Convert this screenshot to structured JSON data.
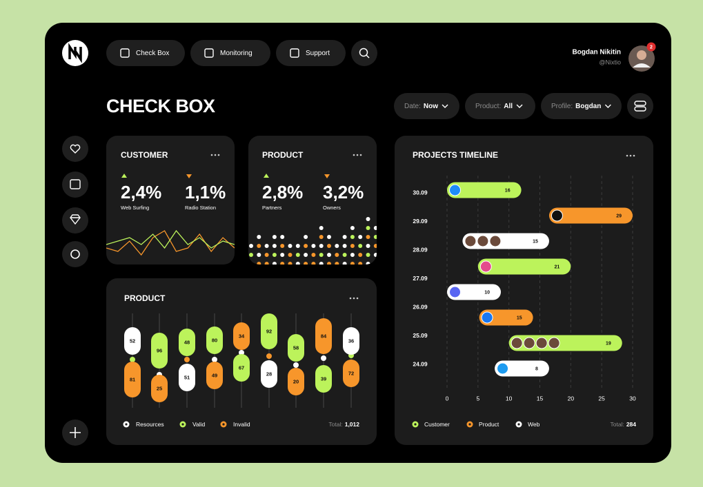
{
  "nav": {
    "items": [
      "Check Box",
      "Monitoring",
      "Support"
    ]
  },
  "user": {
    "name": "Bogdan Nikitin",
    "handle": "@Nixtio",
    "notifications": 2
  },
  "title": "CHECK BOX",
  "filters": [
    {
      "label": "Date:",
      "value": "Now"
    },
    {
      "label": "Product:",
      "value": "All"
    },
    {
      "label": "Profile:",
      "value": "Bogdan"
    }
  ],
  "customer": {
    "title": "CUSTOMER",
    "stats": [
      {
        "value": 2.4,
        "value_label": "2,4%",
        "label": "Web Surfing"
      },
      {
        "value": 1.1,
        "value_label": "1,1%",
        "label": "Radio Station"
      }
    ],
    "ylim": [
      0,
      10
    ],
    "lines": [
      {
        "color": "#f7962b",
        "values": [
          3,
          2,
          5,
          1,
          6,
          8,
          2,
          3,
          7,
          2,
          6,
          3
        ]
      },
      {
        "color": "#bcf35b",
        "values": [
          4,
          5,
          6,
          4,
          7,
          3,
          8,
          4,
          6,
          3,
          5,
          4
        ]
      }
    ]
  },
  "product_summary": {
    "title": "PRODUCT",
    "stats": [
      {
        "value": 2.8,
        "value_label": "2,8%",
        "label": "Partners"
      },
      {
        "value": 3.2,
        "value_label": "3,2%",
        "label": "Owners"
      }
    ]
  },
  "product": {
    "title": "PRODUCT",
    "series": [
      {
        "name": "Resources",
        "color": "#ffffff",
        "values": [
          52,
          null,
          51,
          null,
          null,
          28,
          null,
          null,
          36
        ]
      },
      {
        "name": "Valid",
        "color": "#bcf35b",
        "values": [
          null,
          96,
          48,
          80,
          67,
          92,
          58,
          39,
          null
        ]
      },
      {
        "name": "Invalid",
        "color": "#f7962b",
        "values": [
          81,
          25,
          null,
          49,
          34,
          null,
          20,
          84,
          72
        ]
      }
    ],
    "total_label": "Total:",
    "total": {
      "value": 1012,
      "label": "1,012"
    }
  },
  "timeline": {
    "title": "PROJECTS TIMELINE",
    "dates": [
      "30.09",
      "29.09",
      "28.09",
      "27.09",
      "26.09",
      "25.09",
      "24.09"
    ],
    "xlim": [
      0,
      30
    ],
    "xticks": [
      0,
      5,
      10,
      15,
      20,
      25,
      30
    ],
    "series": [
      {
        "name": "Customer",
        "color": "#bcf35b"
      },
      {
        "name": "Product",
        "color": "#f7962b"
      },
      {
        "name": "Web",
        "color": "#ffffff"
      }
    ],
    "tasks": [
      {
        "series": 0,
        "start": 0,
        "end": 12,
        "value": 16
      },
      {
        "series": 1,
        "start": 16.5,
        "end": 30,
        "value": 29
      },
      {
        "series": 2,
        "start": 2.5,
        "end": 16.5,
        "value": 15
      },
      {
        "series": 0,
        "start": 5,
        "end": 20,
        "value": 21
      },
      {
        "series": 2,
        "start": 0,
        "end": 8.7,
        "value": 10
      },
      {
        "series": 1,
        "start": 5.2,
        "end": 13.9,
        "value": 15
      },
      {
        "series": 0,
        "start": 10,
        "end": 28.3,
        "value": 19
      },
      {
        "series": 2,
        "start": 7.7,
        "end": 16.5,
        "value": 8
      }
    ],
    "total_label": "Total:",
    "total": 284
  }
}
